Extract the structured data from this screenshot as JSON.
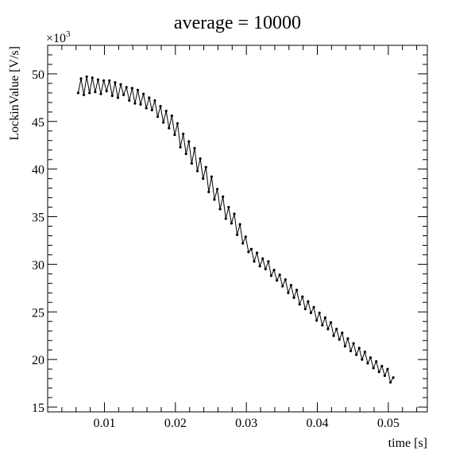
{
  "chart_data": {
    "type": "line",
    "title": "average = 10000",
    "xlabel": "time [s]",
    "ylabel": "LockinValue [V/s]",
    "y_multiplier_label": "×10",
    "y_multiplier_exponent": "3",
    "xlim": [
      0.002,
      0.0555
    ],
    "ylim": [
      14.5,
      53
    ],
    "x_ticks": [
      0.01,
      0.02,
      0.03,
      0.04,
      0.05
    ],
    "x_tick_labels": [
      "0.01",
      "0.02",
      "0.03",
      "0.04",
      "0.05"
    ],
    "y_ticks": [
      15,
      20,
      25,
      30,
      35,
      40,
      45,
      50
    ],
    "y_tick_labels": [
      "15",
      "20",
      "25",
      "30",
      "35",
      "40",
      "45",
      "50"
    ],
    "grid": false,
    "marker": "dot",
    "series_color": "#000000",
    "x": [
      0.0063,
      0.0067,
      0.0071,
      0.0075,
      0.0079,
      0.0083,
      0.0087,
      0.0091,
      0.0095,
      0.0099,
      0.0103,
      0.0107,
      0.0111,
      0.0115,
      0.0119,
      0.0123,
      0.0127,
      0.0131,
      0.0135,
      0.0139,
      0.0143,
      0.0147,
      0.0151,
      0.0155,
      0.0159,
      0.0163,
      0.0167,
      0.0171,
      0.0175,
      0.0179,
      0.0183,
      0.0187,
      0.0191,
      0.0195,
      0.0199,
      0.0203,
      0.0207,
      0.0211,
      0.0215,
      0.0219,
      0.0223,
      0.0227,
      0.0231,
      0.0235,
      0.0239,
      0.0243,
      0.0247,
      0.0251,
      0.0255,
      0.0259,
      0.0263,
      0.0267,
      0.0271,
      0.0275,
      0.0279,
      0.0283,
      0.0287,
      0.0291,
      0.0295,
      0.0299,
      0.0303,
      0.0307,
      0.0311,
      0.0315,
      0.0319,
      0.0323,
      0.0327,
      0.0331,
      0.0335,
      0.0339,
      0.0343,
      0.0347,
      0.0351,
      0.0355,
      0.0359,
      0.0363,
      0.0367,
      0.0371,
      0.0375,
      0.0379,
      0.0383,
      0.0387,
      0.0391,
      0.0395,
      0.0399,
      0.0403,
      0.0407,
      0.0411,
      0.0415,
      0.0419,
      0.0423,
      0.0427,
      0.0431,
      0.0435,
      0.0439,
      0.0443,
      0.0447,
      0.0451,
      0.0455,
      0.0459,
      0.0463,
      0.0467,
      0.0471,
      0.0475,
      0.0479,
      0.0483,
      0.0487,
      0.0491,
      0.0495,
      0.0499,
      0.0503,
      0.0507
    ],
    "y": [
      48,
      49.5,
      47.8,
      49.7,
      48,
      49.6,
      48.1,
      49.4,
      47.9,
      49.3,
      48.2,
      49.3,
      47.7,
      49.1,
      47.5,
      48.9,
      47.8,
      48.6,
      47.2,
      48.5,
      46.9,
      48.3,
      46.8,
      47.9,
      46.4,
      47.5,
      46.2,
      47.2,
      45.5,
      46.6,
      44.9,
      46.1,
      44.3,
      45.6,
      43.6,
      44.8,
      42.3,
      43.7,
      41.6,
      42.9,
      40.6,
      42.2,
      39.8,
      41.1,
      39,
      40.2,
      37.6,
      39.2,
      36.8,
      37.9,
      35.8,
      37.1,
      34.8,
      36,
      34.3,
      35.3,
      33.1,
      34.2,
      32.2,
      32.9,
      31.3,
      31.6,
      30.3,
      31.2,
      29.8,
      30.6,
      29.5,
      30.3,
      28.8,
      29.4,
      28.3,
      28.9,
      27.7,
      28.4,
      27,
      27.8,
      26.5,
      27.3,
      25.8,
      26.6,
      25.3,
      26.1,
      24.9,
      25.5,
      24.1,
      24.9,
      23.6,
      24.4,
      23.2,
      23.9,
      22.5,
      23.2,
      22.1,
      22.8,
      21.4,
      22.2,
      20.9,
      21.7,
      20.5,
      21.2,
      20,
      20.8,
      19.6,
      20.2,
      19.1,
      19.8,
      18.7,
      19.3,
      18.3,
      19,
      17.6,
      18.1
    ]
  }
}
